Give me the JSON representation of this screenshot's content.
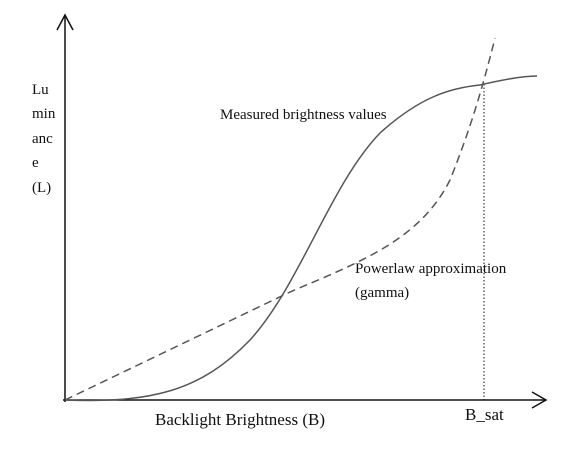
{
  "axes": {
    "y_label": [
      "Lu",
      "min",
      "anc",
      "e",
      "(L)"
    ],
    "x_label": "Backlight Brightness (B)",
    "x_marker": "B_sat"
  },
  "curves": {
    "measured": "Measured brightness values",
    "powerlaw": [
      "Powerlaw approximation",
      "(gamma)"
    ]
  }
}
